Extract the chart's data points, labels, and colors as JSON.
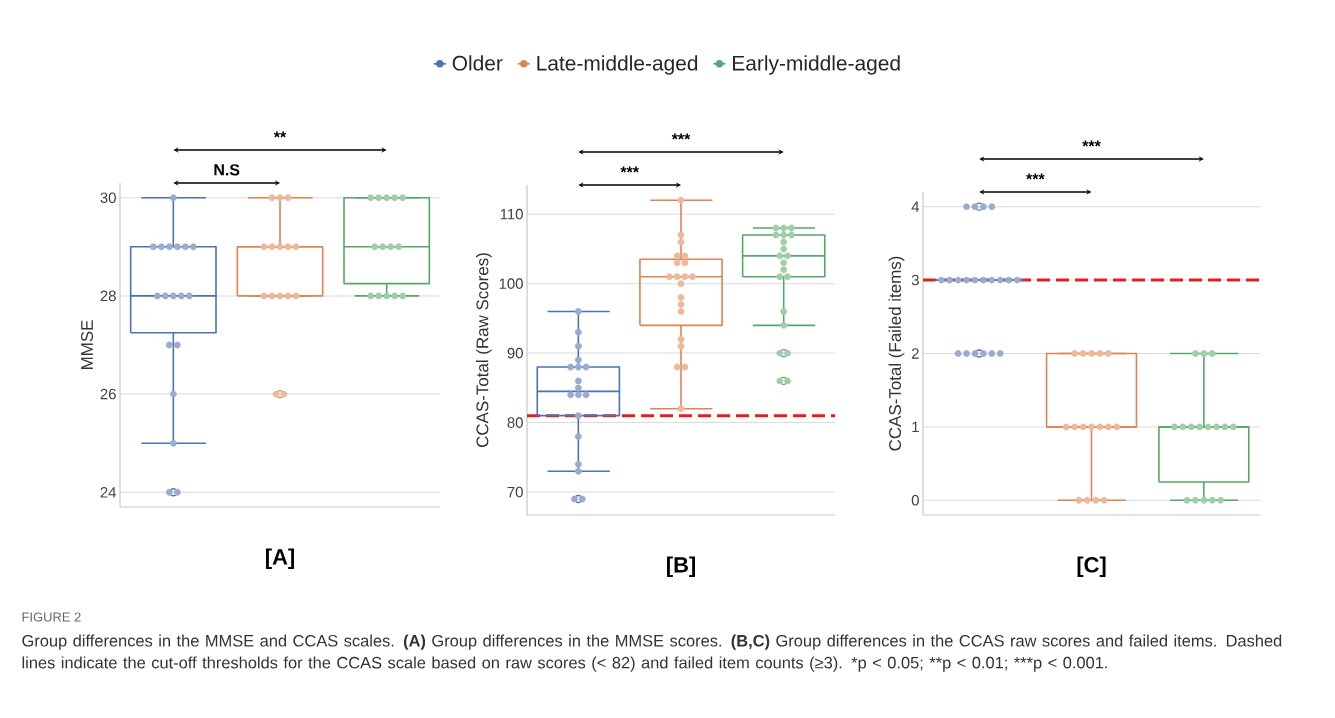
{
  "chart_data": [
    {
      "type": "box",
      "xlabel": "[A]",
      "ylabel": "MMSE",
      "categories": [
        null,
        null,
        null
      ],
      "ylim": [
        23.7,
        30.3
      ],
      "yticks": [
        24,
        26,
        28,
        30
      ],
      "grid": "y",
      "legend": "top",
      "series": [
        {
          "name": "Older",
          "color": "#4c72b0",
          "boxes": [
            {
              "low": 25,
              "q1": 27.25,
              "median": 28,
              "q3": 29,
              "high": 30,
              "outliers": [
                24
              ]
            },
            null,
            null
          ]
        },
        {
          "name": "Late-middle-aged",
          "color": "#dd8452",
          "boxes": [
            null,
            {
              "low": 28,
              "q1": 28,
              "median": 29,
              "q3": 29,
              "high": 30,
              "outliers": [
                26
              ]
            },
            null
          ]
        },
        {
          "name": "Early-middle-aged",
          "color": "#55a868",
          "boxes": [
            null,
            null,
            {
              "low": 28,
              "q1": 28.25,
              "median": 29,
              "q3": 30,
              "high": 30
            }
          ]
        },
        {
          "type": "scatter",
          "colors": [
            "#9aabcf",
            "#eeb99b",
            "#9fcfa9"
          ],
          "values": [
            30,
            30,
            30
          ]
        },
        {
          "type": "scatter",
          "colors": [
            "#9aabcf",
            "#eeb99b",
            "#9fcfa9"
          ],
          "values": [
            29,
            30,
            30
          ]
        },
        {
          "type": "scatter",
          "colors": [
            "#9aabcf",
            "#eeb99b",
            "#9fcfa9"
          ],
          "values": [
            29,
            30,
            30
          ]
        },
        {
          "type": "scatter",
          "colors": [
            "#9aabcf",
            "#eeb99b",
            "#9fcfa9"
          ],
          "values": [
            29,
            29,
            30
          ]
        },
        {
          "type": "scatter",
          "colors": [
            "#9aabcf",
            "#eeb99b",
            "#9fcfa9"
          ],
          "values": [
            29,
            29,
            30
          ]
        },
        {
          "type": "scatter",
          "colors": [
            "#9aabcf",
            "#eeb99b",
            "#9fcfa9"
          ],
          "values": [
            29,
            29,
            29
          ]
        },
        {
          "type": "scatter",
          "colors": [
            "#9aabcf",
            "#eeb99b",
            "#9fcfa9"
          ],
          "values": [
            29,
            29,
            29
          ]
        },
        {
          "type": "scatter",
          "colors": [
            "#9aabcf",
            "#eeb99b",
            "#9fcfa9"
          ],
          "values": [
            28,
            29,
            29
          ]
        },
        {
          "type": "scatter",
          "colors": [
            "#9aabcf",
            "#eeb99b",
            "#9fcfa9"
          ],
          "values": [
            28,
            28,
            29
          ]
        },
        {
          "type": "scatter",
          "colors": [
            "#9aabcf",
            "#eeb99b",
            "#9fcfa9"
          ],
          "values": [
            28,
            28,
            28
          ]
        },
        {
          "type": "scatter",
          "colors": [
            "#9aabcf",
            "#eeb99b",
            "#9fcfa9"
          ],
          "values": [
            28,
            28,
            28
          ]
        },
        {
          "type": "scatter",
          "colors": [
            "#9aabcf",
            "#eeb99b",
            "#9fcfa9"
          ],
          "values": [
            28,
            28,
            28
          ]
        },
        {
          "type": "scatter",
          "colors": [
            "#9aabcf",
            "#eeb99b",
            "#9fcfa9"
          ],
          "values": [
            27,
            28,
            28
          ]
        },
        {
          "type": "scatter",
          "colors": [
            "#9aabcf",
            "#eeb99b",
            "#9fcfa9"
          ],
          "values": [
            27,
            26,
            28
          ]
        },
        {
          "type": "scatter",
          "colors": [
            "#9aabcf",
            "#eeb99b",
            "#9fcfa9"
          ],
          "values": [
            26,
            26,
            null
          ]
        },
        {
          "type": "scatter",
          "colors": [
            "#9aabcf",
            "#eeb99b",
            "#9fcfa9"
          ],
          "values": [
            25,
            null,
            null
          ]
        },
        {
          "type": "scatter",
          "colors": [
            "#9aabcf",
            "#eeb99b",
            "#9fcfa9"
          ],
          "values": [
            24,
            null,
            null
          ]
        },
        {
          "type": "scatter",
          "colors": [
            "#9aabcf",
            "#eeb99b",
            "#9fcfa9"
          ],
          "values": [
            24,
            null,
            null
          ]
        }
      ],
      "annotations": [
        "**",
        "N.S",
        "FIGURE 2",
        "Group differences in the MMSE and CCAS scales. **(A)** Group differences in the MMSE scores. **(B,C)** Group differences in the CCAS raw scores and failed items. Dashed lines indicate the cut-off thresholds for the CCAS scale based on raw scores (< 82) and failed item counts (≥3).",
        "*p < 0.05;",
        "**p < 0.01;",
        "***p < 0.001."
      ]
    },
    {
      "type": "box",
      "xlabel": "[B]",
      "ylabel": "CCAS-Total (Raw Scores)",
      "categories": [
        null,
        null,
        null
      ],
      "ylim": [
        66.7,
        114.2
      ],
      "yticks": [
        70,
        80,
        90,
        100,
        110
      ],
      "grid": "y",
      "series": [
        {
          "color": "#4c72b0",
          "boxes": [
            {
              "low": 73,
              "q1": 81,
              "median": 84.5,
              "q3": 88,
              "high": 96,
              "outliers": [
                69
              ]
            },
            null,
            null
          ]
        },
        {
          "color": "#dd8452",
          "boxes": [
            null,
            {
              "low": 82,
              "q1": 94,
              "median": 101,
              "q3": 103.5,
              "high": 112
            },
            null
          ]
        },
        {
          "color": "#55a868",
          "boxes": [
            null,
            null,
            {
              "low": 94,
              "q1": 101,
              "median": 104,
              "q3": 107,
              "high": 108,
              "outliers": [
                90,
                86
              ]
            }
          ]
        },
        {
          "type": "scatter",
          "colors": [
            "#9aabcf",
            "#eeb99b",
            "#9fcfa9"
          ],
          "values": [
            96,
            112,
            108
          ]
        },
        {
          "type": "scatter",
          "colors": [
            "#9aabcf",
            "#eeb99b",
            "#9fcfa9"
          ],
          "values": [
            93,
            107,
            108
          ]
        },
        {
          "type": "scatter",
          "colors": [
            "#9aabcf",
            "#eeb99b",
            "#9fcfa9"
          ],
          "values": [
            91,
            106,
            108
          ]
        },
        {
          "type": "scatter",
          "colors": [
            "#9aabcf",
            "#eeb99b",
            "#9fcfa9"
          ],
          "values": [
            89,
            104,
            107
          ]
        },
        {
          "type": "scatter",
          "colors": [
            "#9aabcf",
            "#eeb99b",
            "#9fcfa9"
          ],
          "values": [
            88,
            104,
            107
          ]
        },
        {
          "type": "scatter",
          "colors": [
            "#9aabcf",
            "#eeb99b",
            "#9fcfa9"
          ],
          "values": [
            88,
            103,
            107
          ]
        },
        {
          "type": "scatter",
          "colors": [
            "#9aabcf",
            "#eeb99b",
            "#9fcfa9"
          ],
          "values": [
            88,
            103,
            106
          ]
        },
        {
          "type": "scatter",
          "colors": [
            "#9aabcf",
            "#eeb99b",
            "#9fcfa9"
          ],
          "values": [
            86,
            101,
            105
          ]
        },
        {
          "type": "scatter",
          "colors": [
            "#9aabcf",
            "#eeb99b",
            "#9fcfa9"
          ],
          "values": [
            85,
            101,
            104
          ]
        },
        {
          "type": "scatter",
          "colors": [
            "#9aabcf",
            "#eeb99b",
            "#9fcfa9"
          ],
          "values": [
            84,
            101,
            104
          ]
        },
        {
          "type": "scatter",
          "colors": [
            "#9aabcf",
            "#eeb99b",
            "#9fcfa9"
          ],
          "values": [
            84,
            101,
            103
          ]
        },
        {
          "type": "scatter",
          "colors": [
            "#9aabcf",
            "#eeb99b",
            "#9fcfa9"
          ],
          "values": [
            84,
            100,
            102
          ]
        },
        {
          "type": "scatter",
          "colors": [
            "#9aabcf",
            "#eeb99b",
            "#9fcfa9"
          ],
          "values": [
            81,
            98,
            101
          ]
        },
        {
          "type": "scatter",
          "colors": [
            "#9aabcf",
            "#eeb99b",
            "#9fcfa9"
          ],
          "values": [
            78,
            97,
            101
          ]
        },
        {
          "type": "scatter",
          "colors": [
            "#9aabcf",
            "#eeb99b",
            "#9fcfa9"
          ],
          "values": [
            74,
            96,
            96
          ]
        },
        {
          "type": "scatter",
          "colors": [
            "#9aabcf",
            "#eeb99b",
            "#9fcfa9"
          ],
          "values": [
            73,
            92,
            94
          ]
        },
        {
          "type": "scatter",
          "colors": [
            "#9aabcf",
            "#eeb99b",
            "#9fcfa9"
          ],
          "values": [
            69,
            91,
            90
          ]
        },
        {
          "type": "scatter",
          "colors": [
            "#9aabcf",
            "#eeb99b",
            "#9fcfa9"
          ],
          "values": [
            69,
            88,
            90
          ]
        },
        {
          "type": "scatter",
          "colors": [
            "#9aabcf",
            "#eeb99b",
            "#9fcfa9"
          ],
          "values": [
            null,
            88,
            86
          ]
        },
        {
          "type": "scatter",
          "colors": [
            "#9aabcf",
            "#eeb99b",
            "#9fcfa9"
          ],
          "values": [
            null,
            82,
            86
          ]
        }
      ],
      "ref_lines": [
        {
          "axis": "y",
          "value": 81,
          "color": "#e02020",
          "line_style": "dashed"
        }
      ],
      "annotations": [
        "***",
        "***"
      ]
    },
    {
      "type": "box",
      "xlabel": "[C]",
      "ylabel": "CCAS-Total (Failed items)",
      "categories": [
        null,
        null,
        null
      ],
      "ylim": [
        -0.2,
        4.2
      ],
      "yticks": [
        0,
        1,
        2,
        3,
        4
      ],
      "grid": "y",
      "series": [
        {
          "color": "#4c72b0",
          "boxes": [
            {
              "low": 3,
              "q1": 3,
              "median": 3,
              "q3": 3,
              "high": 3,
              "outliers": [
                4,
                2
              ]
            },
            null,
            null
          ]
        },
        {
          "color": "#dd8452",
          "boxes": [
            null,
            {
              "low": 0,
              "q1": 1,
              "median": 1,
              "q3": 2,
              "high": 2
            },
            null
          ]
        },
        {
          "color": "#55a868",
          "boxes": [
            null,
            null,
            {
              "low": 0,
              "q1": 0.25,
              "median": 1,
              "q3": 1,
              "high": 2
            }
          ]
        },
        {
          "type": "scatter",
          "colors": [
            "#9aabcf",
            "#eeb99b",
            "#9fcfa9"
          ],
          "values": [
            4,
            2,
            2
          ]
        },
        {
          "type": "scatter",
          "colors": [
            "#9aabcf",
            "#eeb99b",
            "#9fcfa9"
          ],
          "values": [
            4,
            2,
            2
          ]
        },
        {
          "type": "scatter",
          "colors": [
            "#9aabcf",
            "#eeb99b",
            "#9fcfa9"
          ],
          "values": [
            4,
            2,
            2
          ]
        },
        {
          "type": "scatter",
          "colors": [
            "#9aabcf",
            "#eeb99b",
            "#9fcfa9"
          ],
          "values": [
            4,
            2,
            1
          ]
        },
        {
          "type": "scatter",
          "colors": [
            "#9aabcf",
            "#eeb99b",
            "#9fcfa9"
          ],
          "values": [
            3,
            2,
            1
          ]
        },
        {
          "type": "scatter",
          "colors": [
            "#9aabcf",
            "#eeb99b",
            "#9fcfa9"
          ],
          "values": [
            3,
            1,
            1
          ]
        },
        {
          "type": "scatter",
          "colors": [
            "#9aabcf",
            "#eeb99b",
            "#9fcfa9"
          ],
          "values": [
            3,
            1,
            1
          ]
        },
        {
          "type": "scatter",
          "colors": [
            "#9aabcf",
            "#eeb99b",
            "#9fcfa9"
          ],
          "values": [
            3,
            1,
            1
          ]
        },
        {
          "type": "scatter",
          "colors": [
            "#9aabcf",
            "#eeb99b",
            "#9fcfa9"
          ],
          "values": [
            3,
            1,
            1
          ]
        },
        {
          "type": "scatter",
          "colors": [
            "#9aabcf",
            "#eeb99b",
            "#9fcfa9"
          ],
          "values": [
            3,
            1,
            1
          ]
        },
        {
          "type": "scatter",
          "colors": [
            "#9aabcf",
            "#eeb99b",
            "#9fcfa9"
          ],
          "values": [
            3,
            1,
            1
          ]
        },
        {
          "type": "scatter",
          "colors": [
            "#9aabcf",
            "#eeb99b",
            "#9fcfa9"
          ],
          "values": [
            3,
            1,
            0
          ]
        },
        {
          "type": "scatter",
          "colors": [
            "#9aabcf",
            "#eeb99b",
            "#9fcfa9"
          ],
          "values": [
            3,
            0,
            0
          ]
        },
        {
          "type": "scatter",
          "colors": [
            "#9aabcf",
            "#eeb99b",
            "#9fcfa9"
          ],
          "values": [
            3,
            0,
            0
          ]
        },
        {
          "type": "scatter",
          "colors": [
            "#9aabcf",
            "#eeb99b",
            "#9fcfa9"
          ],
          "values": [
            2,
            0,
            0
          ]
        },
        {
          "type": "scatter",
          "colors": [
            "#9aabcf",
            "#eeb99b",
            "#9fcfa9"
          ],
          "values": [
            2,
            0,
            0
          ]
        },
        {
          "type": "scatter",
          "colors": [
            "#9aabcf",
            "#eeb99b",
            "#9fcfa9"
          ],
          "values": [
            2,
            null,
            null
          ]
        },
        {
          "type": "scatter",
          "colors": [
            "#9aabcf",
            "#eeb99b",
            "#9fcfa9"
          ],
          "values": [
            2,
            null,
            null
          ]
        },
        {
          "type": "scatter",
          "colors": [
            "#9aabcf",
            "#eeb99b",
            "#9fcfa9"
          ],
          "values": [
            2,
            null,
            null
          ]
        },
        {
          "type": "scatter",
          "colors": [
            "#9aabcf",
            "#eeb99b",
            "#9fcfa9"
          ],
          "values": [
            2,
            null,
            null
          ]
        }
      ],
      "ref_lines": [
        {
          "axis": "y",
          "value": 3,
          "color": "#e02020",
          "line_style": "dashed"
        }
      ],
      "annotations": [
        "***",
        "***"
      ]
    }
  ]
}
